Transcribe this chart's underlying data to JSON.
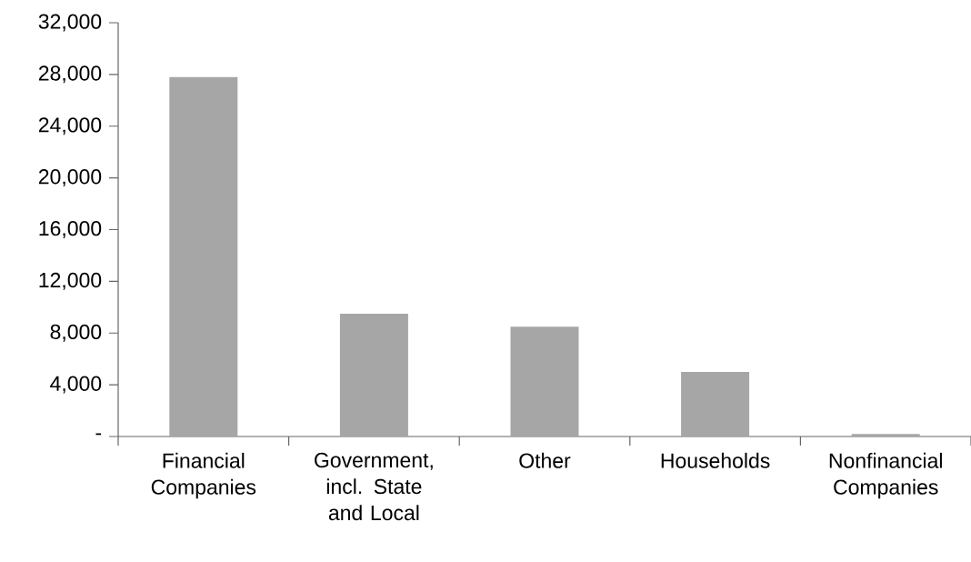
{
  "chart_data": {
    "type": "bar",
    "categories": [
      "Financial Companies",
      "Government, incl. State and Local",
      "Other",
      "Households",
      "Nonfinancial Companies"
    ],
    "values": [
      27800,
      9500,
      8500,
      5000,
      200
    ],
    "color": "#a6a6a6",
    "ylim": [
      0,
      32000
    ],
    "yticks": [
      {
        "value": 0,
        "label": "-"
      },
      {
        "value": 4000,
        "label": "4,000"
      },
      {
        "value": 8000,
        "label": "8,000"
      },
      {
        "value": 12000,
        "label": "12,000"
      },
      {
        "value": 16000,
        "label": "16,000"
      },
      {
        "value": 20000,
        "label": "20,000"
      },
      {
        "value": 24000,
        "label": "24,000"
      },
      {
        "value": 28000,
        "label": "28,000"
      },
      {
        "value": 32000,
        "label": "32,000"
      }
    ]
  }
}
